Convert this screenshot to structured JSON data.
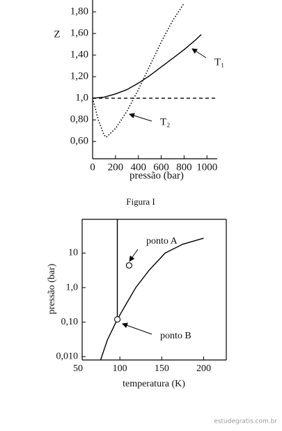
{
  "chart_data": [
    {
      "type": "line",
      "ylabel": "Z",
      "xlabel": "pressão (bar)",
      "caption": "Figura I",
      "xlim": [
        0,
        1090
      ],
      "xticks": [
        0,
        200,
        400,
        600,
        800,
        1000
      ],
      "ylim": [
        0.44,
        1.91
      ],
      "yticks": [
        {
          "value": 0.6,
          "label": "0,60"
        },
        {
          "value": 0.8,
          "label": "0,80"
        },
        {
          "value": 1.0,
          "label": "1,0"
        },
        {
          "value": 1.2,
          "label": "1,20"
        },
        {
          "value": 1.4,
          "label": "1,40"
        },
        {
          "value": 1.6,
          "label": "1,60"
        },
        {
          "value": 1.8,
          "label": "1,80"
        }
      ],
      "frame": "open",
      "log": false,
      "series": [
        {
          "name": "T₁",
          "color": "#000000",
          "dash": "solid",
          "x": [
            0,
            100,
            200,
            300,
            400,
            500,
            600,
            700,
            800,
            900,
            950
          ],
          "values": [
            1.0,
            1.01,
            1.04,
            1.08,
            1.14,
            1.21,
            1.29,
            1.37,
            1.45,
            1.54,
            1.59
          ]
        },
        {
          "name": "T₂",
          "color": "#000000",
          "dash": "dotted",
          "x": [
            0,
            50,
            100,
            120,
            200,
            300,
            400,
            500,
            600,
            700,
            800
          ],
          "values": [
            1.0,
            0.8,
            0.66,
            0.64,
            0.72,
            0.88,
            1.08,
            1.3,
            1.52,
            1.72,
            1.88
          ]
        },
        {
          "color": "#000000",
          "dash": "dashed",
          "x": [
            0,
            1080
          ],
          "values": [
            1.0,
            1.0
          ]
        }
      ]
    },
    {
      "type": "line",
      "ylabel": "pressão (bar)",
      "xlabel": "temperatura (K)",
      "xlim": [
        55,
        227
      ],
      "xticks": [
        50,
        100,
        150,
        200
      ],
      "ylim": [
        0.008,
        95
      ],
      "yticks": [
        {
          "value": 0.01,
          "label": "0,010"
        },
        {
          "value": 0.1,
          "label": "0,10"
        },
        {
          "value": 1,
          "label": "1,0"
        },
        10
      ],
      "frame": "box",
      "log": true,
      "series": [
        {
          "color": "#000000",
          "dash": "solid",
          "x": [
            77,
            85,
            97,
            108,
            119,
            135,
            154,
            175,
            200
          ],
          "values": [
            0.008,
            0.03,
            0.12,
            0.35,
            1,
            3.2,
            10,
            18,
            27
          ]
        },
        {
          "color": "#000000",
          "dash": "solid",
          "x": [
            97,
            97
          ],
          "values": [
            0.12,
            95
          ]
        }
      ],
      "points": [
        {
          "label": "ponto A",
          "x": 111,
          "y": 4.4
        },
        {
          "label": "ponto B",
          "x": 97,
          "y": 0.12
        }
      ]
    }
  ],
  "watermark": "estudegratis.com.br"
}
